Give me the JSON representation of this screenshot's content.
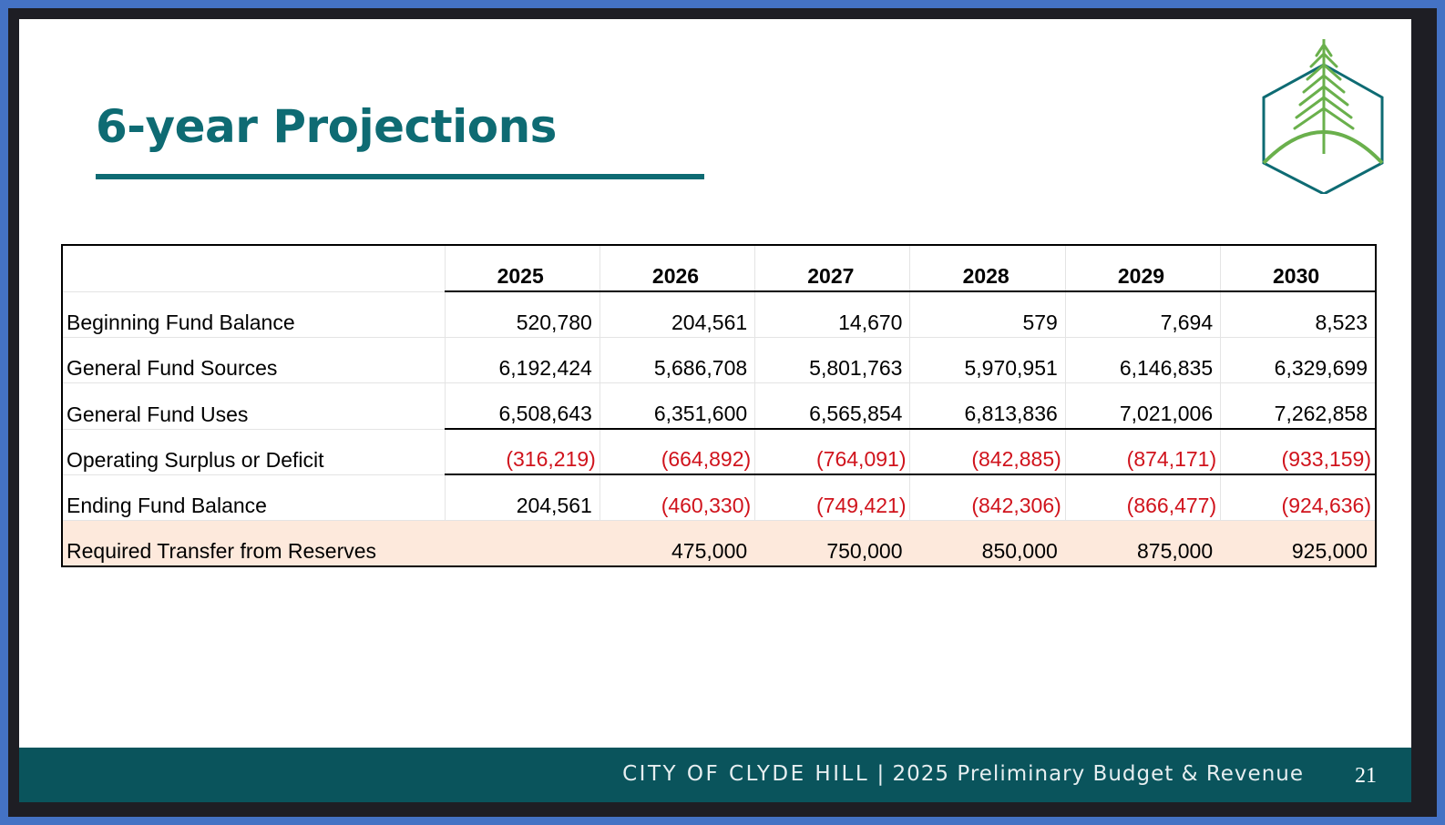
{
  "slide": {
    "title": "6-year Projections",
    "footer_city": "CITY OF CLYDE HILL",
    "footer_separator": " | ",
    "footer_subtitle": "2025 Preliminary Budget & Revenue",
    "page_number": "21"
  },
  "colors": {
    "title": "#0e6b73",
    "footer_bg": "#0a545c",
    "negative": "#d0131c",
    "highlight_row": "#fde9dc",
    "outer_frame": "#4472c4",
    "logo_tree": "#6ab04c",
    "logo_outline": "#0e6b73"
  },
  "logo": {
    "icon": "tree-hexagon-logo"
  },
  "table": {
    "years": [
      "2025",
      "2026",
      "2027",
      "2028",
      "2029",
      "2030"
    ],
    "rows": [
      {
        "label": "Beginning Fund Balance",
        "values": [
          "520,780",
          "204,561",
          "14,670",
          "579",
          "7,694",
          "8,523"
        ]
      },
      {
        "label": "General Fund Sources",
        "values": [
          "6,192,424",
          "5,686,708",
          "5,801,763",
          "5,970,951",
          "6,146,835",
          "6,329,699"
        ]
      },
      {
        "label": "General Fund Uses",
        "values": [
          "6,508,643",
          "6,351,600",
          "6,565,854",
          "6,813,836",
          "7,021,006",
          "7,262,858"
        ]
      },
      {
        "label": "Operating Surplus or Deficit",
        "values": [
          "(316,219)",
          "(664,892)",
          "(764,091)",
          "(842,885)",
          "(874,171)",
          "(933,159)"
        ]
      },
      {
        "label": "Ending Fund Balance",
        "values": [
          "204,561",
          "(460,330)",
          "(749,421)",
          "(842,306)",
          "(866,477)",
          "(924,636)"
        ]
      },
      {
        "label": "Required Transfer from Reserves",
        "values": [
          "",
          "475,000",
          "750,000",
          "850,000",
          "875,000",
          "925,000"
        ]
      }
    ]
  }
}
